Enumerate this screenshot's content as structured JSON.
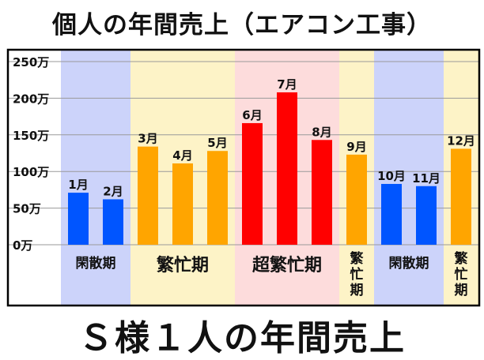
{
  "title": "個人の年間売上（エアコン工事）",
  "footer": "Ｓ様１人の年間売上",
  "chart_data": {
    "type": "bar",
    "categories": [
      "1月",
      "2月",
      "3月",
      "4月",
      "5月",
      "6月",
      "7月",
      "8月",
      "9月",
      "10月",
      "11月",
      "12月"
    ],
    "values": [
      71,
      62,
      134,
      111,
      128,
      166,
      208,
      143,
      123,
      83,
      80,
      131
    ],
    "bar_colors": [
      "#0055ff",
      "#0055ff",
      "#ffa500",
      "#ffa500",
      "#ffa500",
      "#ff0000",
      "#ff0000",
      "#ff0000",
      "#ffa500",
      "#0055ff",
      "#0055ff",
      "#ffa500"
    ],
    "ylim": [
      0,
      250
    ],
    "yticks": [
      0,
      50,
      100,
      150,
      200,
      250
    ],
    "ytick_labels": [
      "0万",
      "50万",
      "100万",
      "150万",
      "200万",
      "250万"
    ],
    "grid": true,
    "season_bands": [
      {
        "label": "閑散期",
        "months": [
          1,
          2
        ],
        "color": "#ccd3fa",
        "vertical": false
      },
      {
        "label": "繁忙期",
        "months": [
          3,
          4,
          5
        ],
        "color": "#fdf3c7",
        "vertical": false
      },
      {
        "label": "超繁忙期",
        "months": [
          6,
          7,
          8
        ],
        "color": "#fddcdc",
        "vertical": false
      },
      {
        "label": "繁忙期",
        "months": [
          9
        ],
        "color": "#fdf3c7",
        "vertical": true
      },
      {
        "label": "閑散期",
        "months": [
          10,
          11
        ],
        "color": "#ccd3fa",
        "vertical": false
      },
      {
        "label": "繁忙期",
        "months": [
          12
        ],
        "color": "#fdf3c7",
        "vertical": true
      }
    ]
  }
}
